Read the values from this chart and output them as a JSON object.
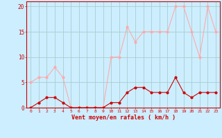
{
  "hours": [
    0,
    1,
    2,
    3,
    4,
    5,
    6,
    7,
    8,
    9,
    10,
    11,
    12,
    13,
    14,
    15,
    16,
    17,
    18,
    19,
    20,
    21,
    22,
    23
  ],
  "wind_avg": [
    0,
    1,
    2,
    2,
    1,
    0,
    0,
    0,
    0,
    0,
    1,
    1,
    3,
    4,
    4,
    3,
    3,
    3,
    6,
    3,
    2,
    3,
    3,
    3
  ],
  "wind_gust": [
    5,
    6,
    6,
    8,
    6,
    0,
    0,
    0,
    0,
    0,
    10,
    10,
    16,
    13,
    15,
    15,
    15,
    15,
    20,
    20,
    15,
    10,
    20,
    15
  ],
  "color_avg": "#cc0000",
  "color_gust": "#ffaaaa",
  "bg_color": "#cceeff",
  "grid_color": "#aacccc",
  "xlabel": "Vent moyen/en rafales ( km/h )",
  "ylim": [
    0,
    21
  ],
  "xlim": [
    -0.5,
    23.5
  ],
  "yticks": [
    0,
    5,
    10,
    15,
    20
  ],
  "xticks": [
    0,
    1,
    2,
    3,
    4,
    5,
    6,
    7,
    8,
    9,
    10,
    11,
    12,
    13,
    14,
    15,
    16,
    17,
    18,
    19,
    20,
    21,
    22,
    23
  ]
}
